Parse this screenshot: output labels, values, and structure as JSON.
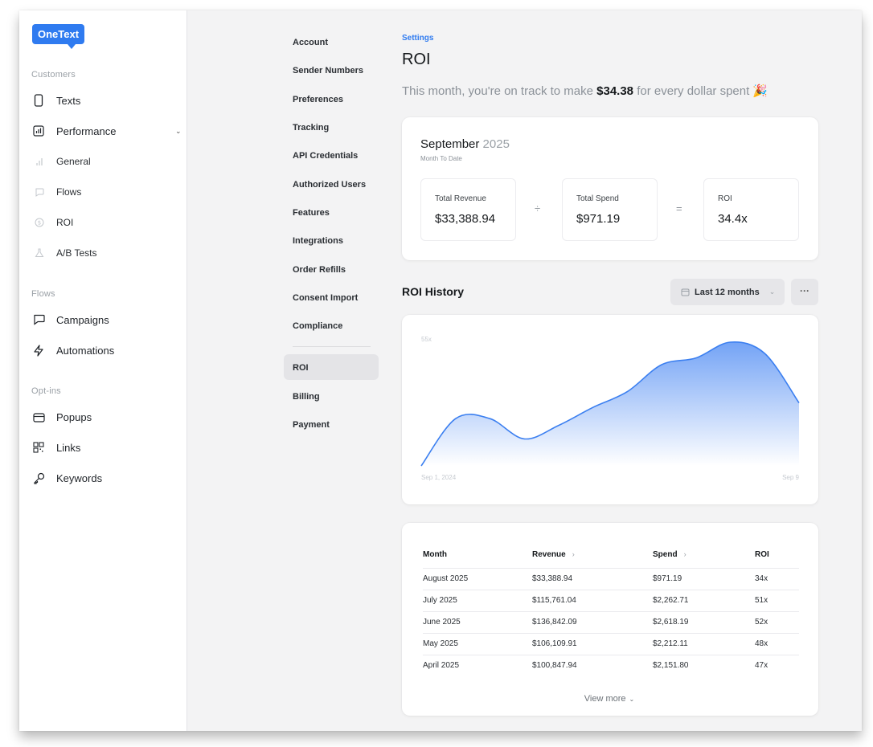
{
  "brand": {
    "name": "OneText",
    "accent": "#2f7bf0"
  },
  "sidebar": {
    "sections": [
      {
        "label": "Customers"
      },
      {
        "label": "Flows"
      },
      {
        "label": "Opt-ins"
      }
    ],
    "items": [
      {
        "label": "Texts",
        "icon": "phone-icon"
      },
      {
        "label": "Performance",
        "icon": "bar-chart-icon"
      },
      {
        "label": "General",
        "icon": "bar-chart-small-icon"
      },
      {
        "label": "Flows",
        "icon": "chat-bubble-icon"
      },
      {
        "label": "ROI",
        "icon": "dollar-circle-icon"
      },
      {
        "label": "A/B Tests",
        "icon": "flask-icon"
      },
      {
        "label": "Campaigns",
        "icon": "chat-bubble-icon"
      },
      {
        "label": "Automations",
        "icon": "lightning-icon"
      },
      {
        "label": "Popups",
        "icon": "window-icon"
      },
      {
        "label": "Links",
        "icon": "qr-code-icon"
      },
      {
        "label": "Keywords",
        "icon": "key-icon"
      }
    ]
  },
  "settings_nav": {
    "items": [
      {
        "label": "Account"
      },
      {
        "label": "Sender Numbers"
      },
      {
        "label": "Preferences"
      },
      {
        "label": "Tracking"
      },
      {
        "label": "API Credentials"
      },
      {
        "label": "Authorized Users"
      },
      {
        "label": "Features"
      },
      {
        "label": "Integrations"
      },
      {
        "label": "Order Refills"
      },
      {
        "label": "Consent Import"
      },
      {
        "label": "Compliance"
      },
      {
        "label": "ROI"
      },
      {
        "label": "Billing"
      },
      {
        "label": "Payment"
      }
    ],
    "active": "ROI"
  },
  "header": {
    "breadcrumb": "Settings",
    "title": "ROI",
    "tagline_prefix": "This month, you're on track to make ",
    "tagline_amount": "$34.38",
    "tagline_suffix": " for every dollar spent 🎉"
  },
  "summary": {
    "month": "September",
    "year": "2025",
    "subtitle": "Month To Date",
    "revenue": {
      "label": "Total Revenue",
      "value": "$33,388.94"
    },
    "spend": {
      "label": "Total Spend",
      "value": "$971.19"
    },
    "roi": {
      "label": "ROI",
      "value": "34.4x"
    },
    "divide_symbol": "÷",
    "equals_symbol": "="
  },
  "history": {
    "title": "ROI History",
    "range_label": "Last 12 months",
    "more_label": "···"
  },
  "chart_data": {
    "type": "area",
    "ytick": "55x",
    "x_start_label": "Sep 1, 2024",
    "x_end_label": "Sep 9",
    "ylim": [
      0,
      55
    ],
    "values": [
      0,
      21,
      21,
      12,
      18,
      26,
      33,
      45,
      48,
      55,
      50,
      28
    ],
    "color": "#3b7ff0"
  },
  "table": {
    "headers": {
      "month": "Month",
      "revenue": "Revenue",
      "spend": "Spend",
      "roi": "ROI",
      "sort_arrow": "›"
    },
    "rows": [
      {
        "month": "August 2025",
        "revenue": "$33,388.94",
        "spend": "$971.19",
        "roi": "34x"
      },
      {
        "month": "July 2025",
        "revenue": "$115,761.04",
        "spend": "$2,262.71",
        "roi": "51x"
      },
      {
        "month": "June 2025",
        "revenue": "$136,842.09",
        "spend": "$2,618.19",
        "roi": "52x"
      },
      {
        "month": "May 2025",
        "revenue": "$106,109.91",
        "spend": "$2,212.11",
        "roi": "48x"
      },
      {
        "month": "April 2025",
        "revenue": "$100,847.94",
        "spend": "$2,151.80",
        "roi": "47x"
      }
    ],
    "view_more": "View more"
  }
}
